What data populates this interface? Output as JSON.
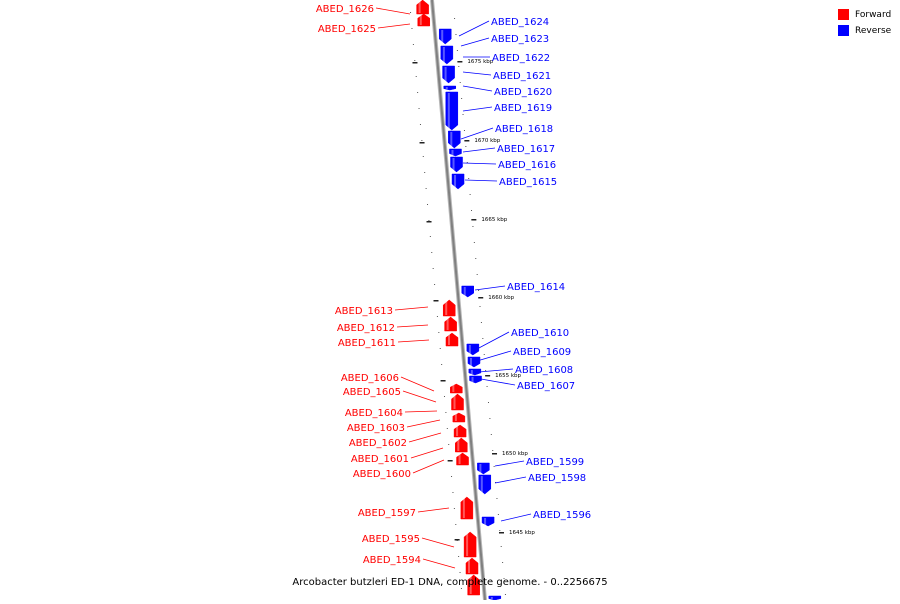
{
  "title": "Arcobacter butzleri ED-1 DNA, complete genome. - 0..2256675",
  "legend": [
    {
      "label": "Forward",
      "color": "#ff0000"
    },
    {
      "label": "Reverse",
      "color": "#0000ff"
    }
  ],
  "colors": {
    "forward": "#ff0000",
    "reverse": "#0000ff",
    "backbone": "#808080"
  },
  "scale_labels": [
    "1675 kbp",
    "1670 kbp",
    "1665 kbp",
    "1660 kbp",
    "1655 kbp",
    "1650 kbp",
    "1645 kbp"
  ],
  "genes_forward": [
    "ABED_1626",
    "ABED_1625",
    "ABED_1613",
    "ABED_1612",
    "ABED_1611",
    "ABED_1606",
    "ABED_1605",
    "ABED_1604",
    "ABED_1603",
    "ABED_1602",
    "ABED_1601",
    "ABED_1600",
    "ABED_1597",
    "ABED_1595",
    "ABED_1594"
  ],
  "genes_reverse": [
    "ABED_1624",
    "ABED_1623",
    "ABED_1622",
    "ABED_1621",
    "ABED_1620",
    "ABED_1619",
    "ABED_1618",
    "ABED_1617",
    "ABED_1616",
    "ABED_1615",
    "ABED_1614",
    "ABED_1610",
    "ABED_1609",
    "ABED_1608",
    "ABED_1607",
    "ABED_1599",
    "ABED_1598",
    "ABED_1596"
  ]
}
